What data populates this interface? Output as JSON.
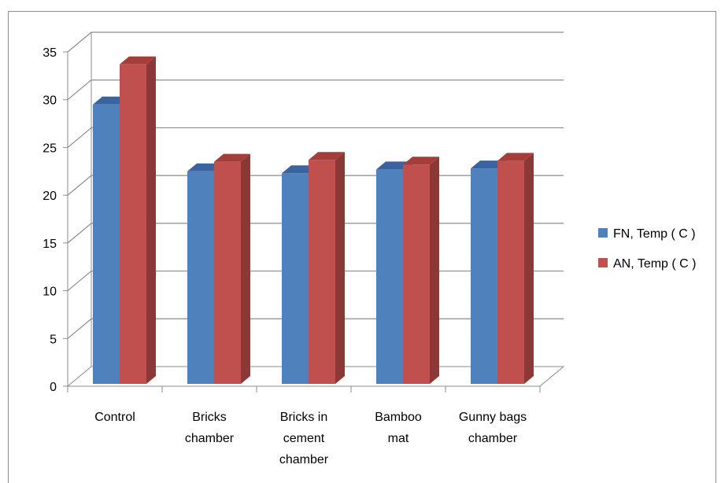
{
  "chart_data": {
    "type": "bar",
    "categories": [
      [
        "Control"
      ],
      [
        "Bricks",
        "chamber"
      ],
      [
        "Bricks in",
        "cement",
        "chamber"
      ],
      [
        "Bamboo",
        "mat"
      ],
      [
        "Gunny bags",
        "chamber"
      ]
    ],
    "series": [
      {
        "name": "FN, Temp ( C )",
        "values": [
          29.5,
          22.5,
          22.3,
          22.7,
          22.8
        ],
        "color": "#4f81bd",
        "side": "#385d8a",
        "top": "#3a64a0"
      },
      {
        "name": "AN, Temp ( C )",
        "values": [
          33.7,
          23.5,
          23.7,
          23.2,
          23.6
        ],
        "color": "#c0504d",
        "side": "#8c3836",
        "top": "#a53e3b"
      }
    ],
    "y_ticks": [
      0,
      5,
      10,
      15,
      20,
      25,
      30,
      35
    ],
    "ylim": [
      0,
      35
    ],
    "grid": true,
    "legend_position": "right",
    "style": "3d-clustered-column",
    "title": "",
    "xlabel": "",
    "ylabel": ""
  }
}
